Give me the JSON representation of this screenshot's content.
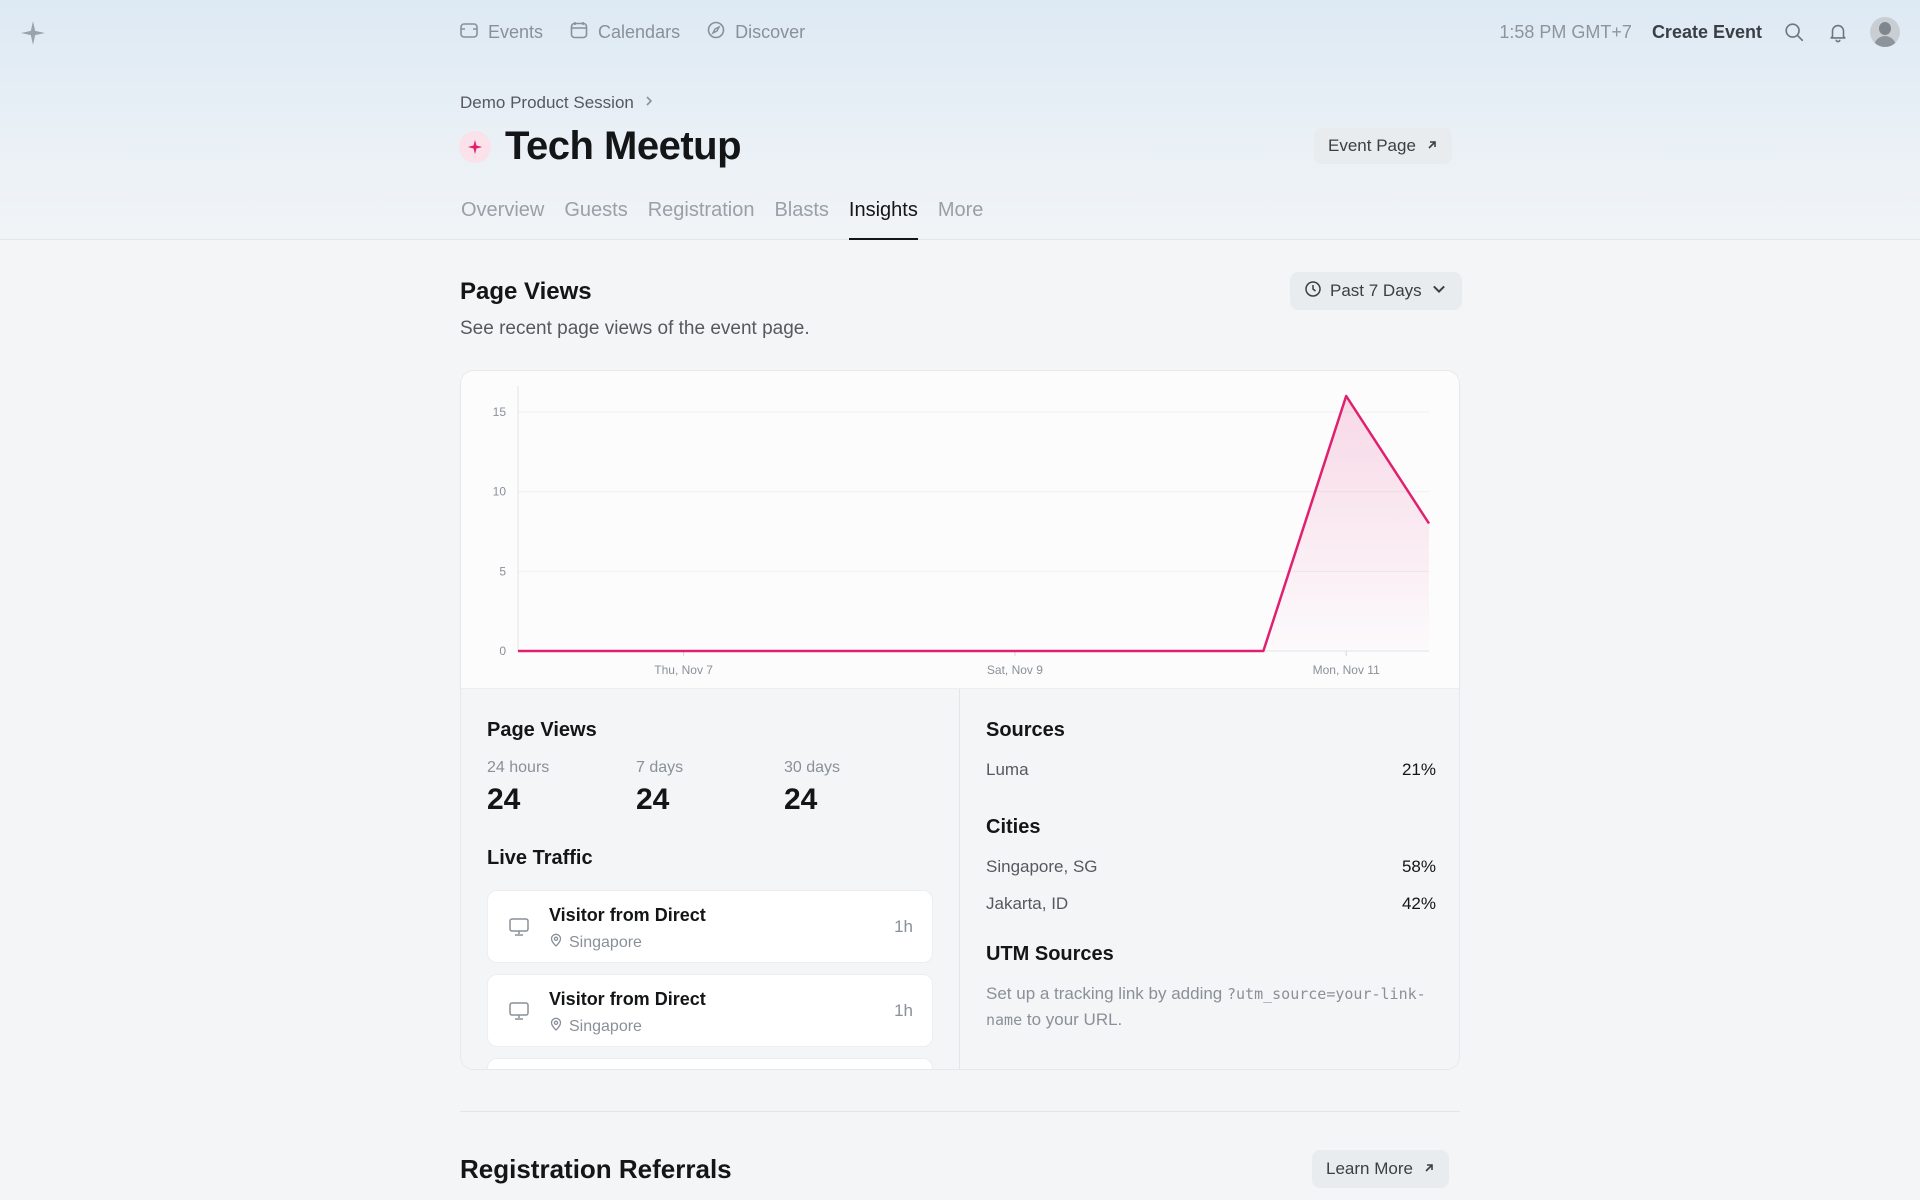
{
  "topbar": {
    "nav": [
      {
        "label": "Events",
        "icon": "ticket-icon"
      },
      {
        "label": "Calendars",
        "icon": "calendar-icon"
      },
      {
        "label": "Discover",
        "icon": "compass-icon"
      }
    ],
    "time": "1:58 PM GMT+7",
    "create_label": "Create Event"
  },
  "header": {
    "breadcrumb": "Demo Product Session",
    "title": "Tech Meetup",
    "event_page_label": "Event Page",
    "tabs": [
      "Overview",
      "Guests",
      "Registration",
      "Blasts",
      "Insights",
      "More"
    ],
    "active_tab": "Insights"
  },
  "page_views": {
    "title": "Page Views",
    "subtitle": "See recent page views of the event page.",
    "range_label": "Past 7 Days"
  },
  "chart_data": {
    "type": "area",
    "title": "",
    "xlabel": "",
    "ylabel": "",
    "ylim": [
      0,
      16
    ],
    "yticks": [
      0,
      5,
      10,
      15
    ],
    "x_tick_labels": [
      "Thu, Nov 7",
      "Sat, Nov 9",
      "Mon, Nov 11"
    ],
    "x": [
      "Nov 6",
      "Nov 7",
      "Nov 8",
      "Nov 9",
      "Nov 10",
      "Nov 10.5",
      "Nov 11",
      "Nov 11.5"
    ],
    "series": [
      {
        "values": [
          0,
          0,
          0,
          0,
          0,
          0,
          16,
          8
        ],
        "color": "#e0206f"
      }
    ],
    "grid": true
  },
  "stats": {
    "title": "Page Views",
    "items": [
      {
        "label": "24 hours",
        "value": "24"
      },
      {
        "label": "7 days",
        "value": "24"
      },
      {
        "label": "30 days",
        "value": "24"
      }
    ]
  },
  "live_traffic": {
    "title": "Live Traffic",
    "visitors": [
      {
        "name": "Visitor from Direct",
        "location": "Singapore",
        "time": "1h"
      },
      {
        "name": "Visitor from Direct",
        "location": "Singapore",
        "time": "1h"
      }
    ]
  },
  "sources": {
    "title": "Sources",
    "rows": [
      {
        "name": "Luma",
        "pct": "21%"
      }
    ]
  },
  "cities": {
    "title": "Cities",
    "rows": [
      {
        "name": "Singapore, SG",
        "pct": "58%"
      },
      {
        "name": "Jakarta, ID",
        "pct": "42%"
      }
    ]
  },
  "utm": {
    "title": "UTM Sources",
    "text_before": "Set up a tracking link by adding ",
    "code": "?utm_source=your-link-name",
    "text_after": " to your URL."
  },
  "referrals": {
    "title": "Registration Referrals",
    "learn_label": "Learn More"
  },
  "colors": {
    "accent": "#e0206f"
  }
}
